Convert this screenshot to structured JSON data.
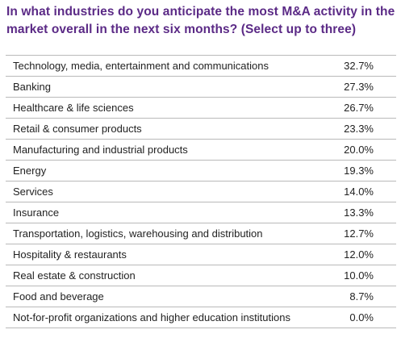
{
  "title": "In what industries do you anticipate the most M&A activity in the market overall in the next six months? (Select up to three)",
  "colors": {
    "title": "#5b2a86",
    "text": "#222222",
    "rule": "#b9b9b9"
  },
  "chart_data": {
    "type": "table",
    "title": "In what industries do you anticipate the most M&A activity in the market overall in the next six months? (Select up to three)",
    "rows": [
      {
        "label": "Technology, media, entertainment and communications",
        "value": 32.7,
        "display": "32.7%"
      },
      {
        "label": "Banking",
        "value": 27.3,
        "display": "27.3%"
      },
      {
        "label": "Healthcare & life sciences",
        "value": 26.7,
        "display": "26.7%"
      },
      {
        "label": "Retail & consumer products",
        "value": 23.3,
        "display": "23.3%"
      },
      {
        "label": "Manufacturing and industrial products",
        "value": 20.0,
        "display": "20.0%"
      },
      {
        "label": "Energy",
        "value": 19.3,
        "display": "19.3%"
      },
      {
        "label": "Services",
        "value": 14.0,
        "display": "14.0%"
      },
      {
        "label": "Insurance",
        "value": 13.3,
        "display": "13.3%"
      },
      {
        "label": "Transportation, logistics, warehousing and distribution",
        "value": 12.7,
        "display": "12.7%"
      },
      {
        "label": "Hospitality & restaurants",
        "value": 12.0,
        "display": "12.0%"
      },
      {
        "label": "Real estate & construction",
        "value": 10.0,
        "display": "10.0%"
      },
      {
        "label": "Food and beverage",
        "value": 8.7,
        "display": "8.7%"
      },
      {
        "label": "Not-for-profit organizations and higher education institutions",
        "value": 0.0,
        "display": "0.0%"
      }
    ]
  }
}
